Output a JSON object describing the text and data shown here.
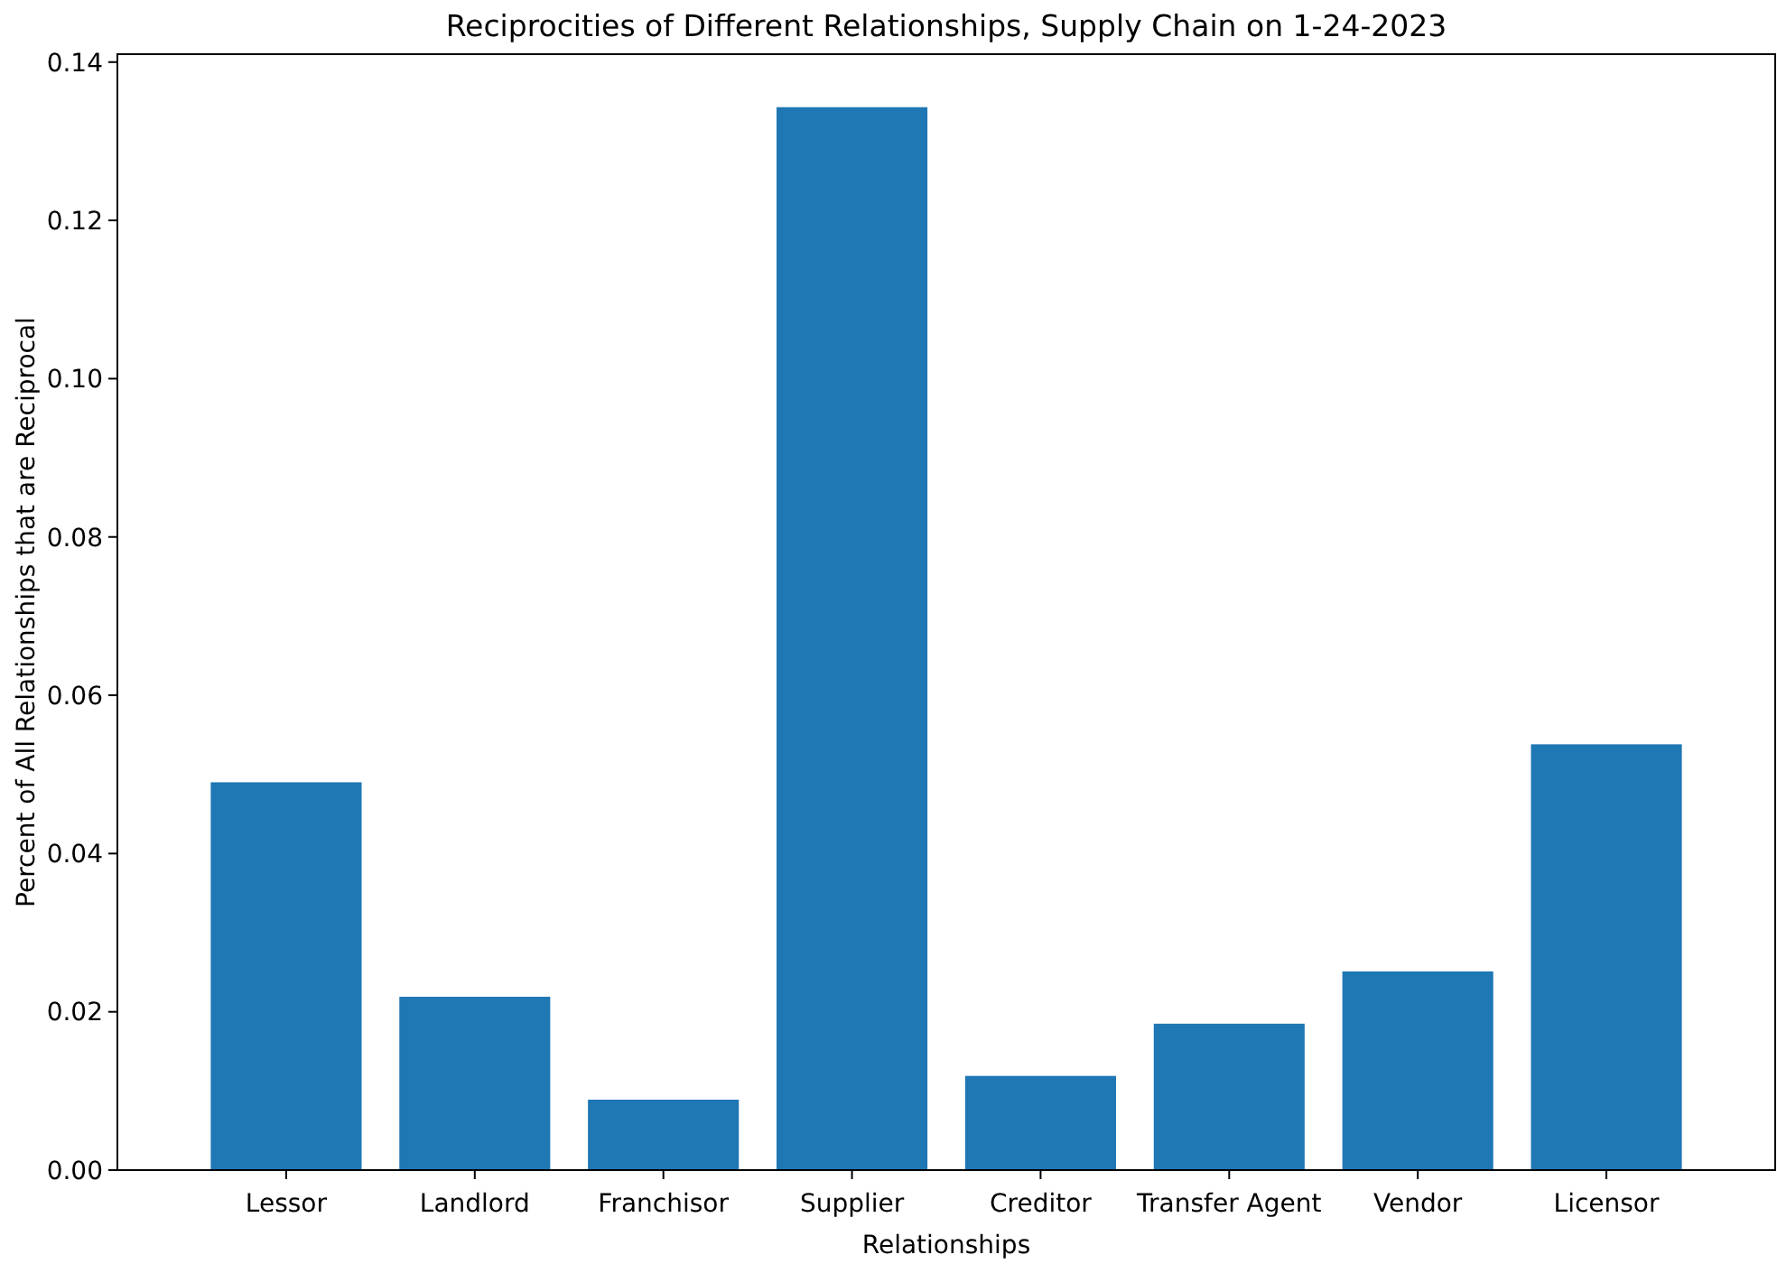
{
  "chart_data": {
    "type": "bar",
    "title": "Reciprocities of Different Relationships, Supply Chain on 1-24-2023",
    "xlabel": "Relationships",
    "ylabel": "Percent of All Relationships that are Reciprocal",
    "categories": [
      "Lessor",
      "Landlord",
      "Franchisor",
      "Supplier",
      "Creditor",
      "Transfer Agent",
      "Vendor",
      "Licensor"
    ],
    "values": [
      0.049,
      0.0219,
      0.0089,
      0.1343,
      0.0119,
      0.0185,
      0.0251,
      0.0538
    ],
    "color": "#1f77b4",
    "ylim": [
      0,
      0.141
    ],
    "yticks": [
      {
        "value": 0,
        "label": "0.00"
      },
      {
        "value": 0.02,
        "label": "0.02"
      },
      {
        "value": 0.04,
        "label": "0.04"
      },
      {
        "value": 0.06,
        "label": "0.06"
      },
      {
        "value": 0.08,
        "label": "0.08"
      },
      {
        "value": 0.1,
        "label": "0.10"
      },
      {
        "value": 0.12,
        "label": "0.12"
      },
      {
        "value": 0.14,
        "label": "0.14"
      }
    ],
    "grid": false
  }
}
